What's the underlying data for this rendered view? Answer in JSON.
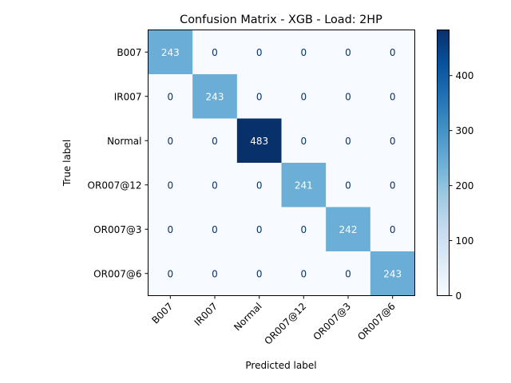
{
  "chart_data": {
    "type": "heatmap",
    "title": "Confusion Matrix - XGB - Load: 2HP",
    "xlabel": "Predicted label",
    "ylabel": "True label",
    "x_categories": [
      "B007",
      "IR007",
      "Normal",
      "OR007@12",
      "OR007@3",
      "OR007@6"
    ],
    "y_categories": [
      "B007",
      "IR007",
      "Normal",
      "OR007@12",
      "OR007@3",
      "OR007@6"
    ],
    "values": [
      [
        243,
        0,
        0,
        0,
        0,
        0
      ],
      [
        0,
        243,
        0,
        0,
        0,
        0
      ],
      [
        0,
        0,
        483,
        0,
        0,
        0
      ],
      [
        0,
        0,
        0,
        241,
        0,
        0
      ],
      [
        0,
        0,
        0,
        0,
        242,
        0
      ],
      [
        0,
        0,
        0,
        0,
        0,
        243
      ]
    ],
    "colormap": "Blues",
    "vmin": 0,
    "vmax": 483,
    "colorbar_ticks": [
      0,
      100,
      200,
      300,
      400
    ],
    "grid": false
  }
}
